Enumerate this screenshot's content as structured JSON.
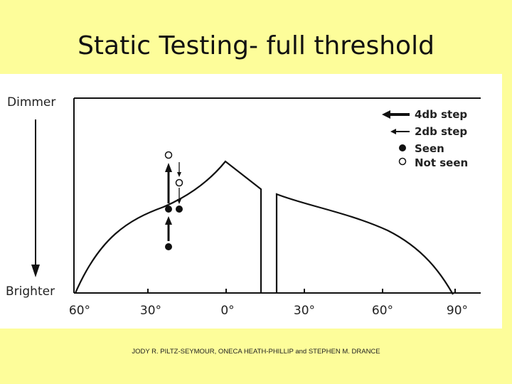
{
  "slide": {
    "title": "Static Testing- full threshold",
    "credit": "JODY R. PILTZ-SEYMOUR, ONECA HEATH-PHILLIP and STEPHEN M. DRANCE"
  },
  "diagram": {
    "y_axis": {
      "top_label": "Dimmer",
      "bottom_label": "Brighter"
    },
    "x_ticks": [
      "60°",
      "30°",
      "0°",
      "30°",
      "60°",
      "90°"
    ],
    "legend": [
      {
        "label": "4db step",
        "symbol": "thick-arrow-icon"
      },
      {
        "label": "2db step",
        "symbol": "thin-arrow-icon"
      },
      {
        "label": "Seen",
        "symbol": "filled-dot-icon"
      },
      {
        "label": "Not seen",
        "symbol": "open-dot-icon"
      }
    ],
    "colors": {
      "ink": "#111111",
      "background": "#ffffff",
      "slide_background": "#fdfd9a"
    }
  }
}
